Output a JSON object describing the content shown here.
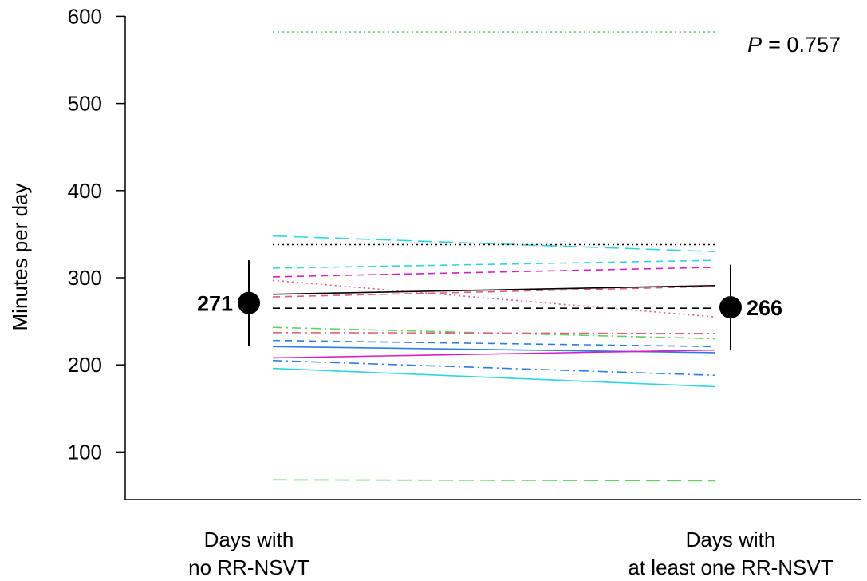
{
  "chart_data": {
    "type": "line",
    "title": "",
    "xlabel": "",
    "ylabel": "Minutes per day",
    "ylim": [
      0,
      600
    ],
    "yticks": [
      100,
      200,
      300,
      400,
      500,
      600
    ],
    "ytick_labels": [
      "100",
      "200",
      "300",
      "400",
      "500",
      "600"
    ],
    "categories": [
      [
        "Days with",
        "no RR-NSVT"
      ],
      [
        "Days with",
        "at least one RR-NSVT"
      ]
    ],
    "annotation": {
      "p_label": "P",
      "p_value": "= 0.757"
    },
    "means": [
      {
        "value": 271,
        "label": "271",
        "err_low": 222,
        "err_high": 320
      },
      {
        "value": 266,
        "label": "266",
        "err_low": 217,
        "err_high": 315
      }
    ],
    "series": [
      {
        "values": [
          582,
          582
        ],
        "color": "#5fd35f",
        "dash": "dotted"
      },
      {
        "values": [
          348,
          330
        ],
        "color": "#2ed6e0",
        "dash": "longdash"
      },
      {
        "values": [
          338,
          338
        ],
        "color": "#000000",
        "dash": "dotted"
      },
      {
        "values": [
          311,
          320
        ],
        "color": "#2ed6e0",
        "dash": "dashed"
      },
      {
        "values": [
          301,
          312
        ],
        "color": "#d41fc8",
        "dash": "dashed"
      },
      {
        "values": [
          297,
          255
        ],
        "color": "#e0607a",
        "dash": "dotted"
      },
      {
        "values": [
          281,
          291
        ],
        "color": "#000000",
        "dash": "solid"
      },
      {
        "values": [
          278,
          290
        ],
        "color": "#e0607a",
        "dash": "dashed"
      },
      {
        "values": [
          265,
          265
        ],
        "color": "#000000",
        "dash": "dashed"
      },
      {
        "values": [
          243,
          230
        ],
        "color": "#5fd35f",
        "dash": "dashdot"
      },
      {
        "values": [
          237,
          236
        ],
        "color": "#e0607a",
        "dash": "dashdot"
      },
      {
        "values": [
          228,
          221
        ],
        "color": "#2a7de1",
        "dash": "dashed"
      },
      {
        "values": [
          221,
          214
        ],
        "color": "#2a7de1",
        "dash": "solid"
      },
      {
        "values": [
          208,
          217
        ],
        "color": "#d41fc8",
        "dash": "solid"
      },
      {
        "values": [
          205,
          188
        ],
        "color": "#2a7de1",
        "dash": "dashdot"
      },
      {
        "values": [
          196,
          175
        ],
        "color": "#2ed6e0",
        "dash": "solid"
      },
      {
        "values": [
          68,
          67
        ],
        "color": "#5fd35f",
        "dash": "longdash"
      }
    ]
  }
}
